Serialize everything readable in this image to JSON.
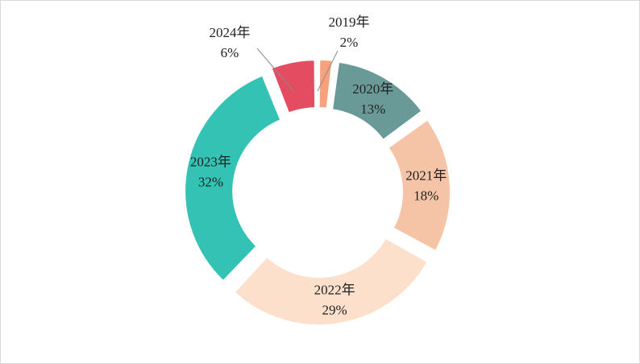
{
  "chart_data": {
    "type": "pie",
    "variant": "doughnut-exploded",
    "categories": [
      "2019年",
      "2020年",
      "2021年",
      "2022年",
      "2023年",
      "2024年"
    ],
    "values": [
      2,
      13,
      18,
      29,
      32,
      6
    ],
    "value_labels": [
      "2%",
      "13%",
      "18%",
      "29%",
      "32%",
      "6%"
    ],
    "colors": [
      "#f7a27c",
      "#699a98",
      "#f5c4a6",
      "#fde0cb",
      "#33c2b4",
      "#e34c61"
    ],
    "title": "",
    "legend": "none",
    "start_angle_deg": 0,
    "direction": "clockwise",
    "data_labels": "category-and-percent"
  }
}
